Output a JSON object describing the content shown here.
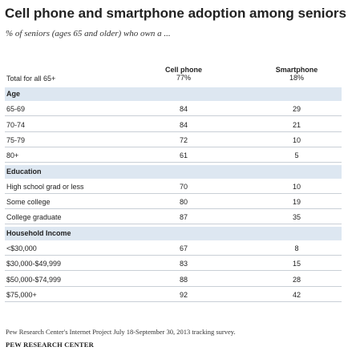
{
  "chart_data": {
    "type": "table",
    "title": "Cell phone and smartphone adoption among seniors",
    "subtitle": "% of seniors (ages 65 and older) who own a ...",
    "columns": [
      "Cell phone",
      "Smartphone"
    ],
    "total": {
      "label": "Total for all 65+",
      "values": [
        "77%",
        "18%"
      ]
    },
    "sections": [
      {
        "name": "Age",
        "rows": [
          {
            "label": "65-69",
            "values": [
              "84",
              "29"
            ]
          },
          {
            "label": "70-74",
            "values": [
              "84",
              "21"
            ]
          },
          {
            "label": "75-79",
            "values": [
              "72",
              "10"
            ]
          },
          {
            "label": "80+",
            "values": [
              "61",
              "5"
            ]
          }
        ]
      },
      {
        "name": "Education",
        "rows": [
          {
            "label": "High school grad or less",
            "values": [
              "70",
              "10"
            ]
          },
          {
            "label": "Some college",
            "values": [
              "80",
              "19"
            ]
          },
          {
            "label": "College graduate",
            "values": [
              "87",
              "35"
            ]
          }
        ]
      },
      {
        "name": "Household Income",
        "rows": [
          {
            "label": "<$30,000",
            "values": [
              "67",
              "8"
            ]
          },
          {
            "label": "$30,000-$49,999",
            "values": [
              "83",
              "15"
            ]
          },
          {
            "label": "$50,000-$74,999",
            "values": [
              "88",
              "28"
            ]
          },
          {
            "label": "$75,000+",
            "values": [
              "92",
              "42"
            ]
          }
        ]
      }
    ],
    "source": "Pew Research Center's Internet Project July 18-September 30, 2013 tracking survey.",
    "brand": "PEW RESEARCH CENTER"
  }
}
